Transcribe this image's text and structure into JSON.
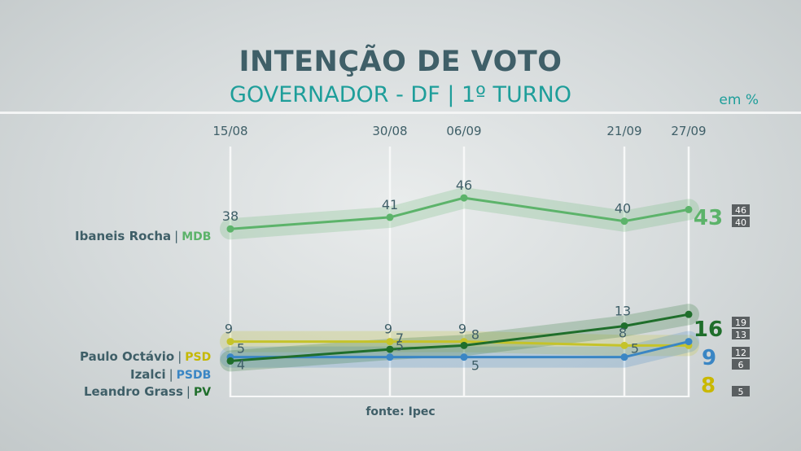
{
  "header": {
    "title": "INTENÇÃO DE VOTO",
    "subtitle": "GOVERNADOR - DF | 1º TURNO",
    "unit": "em %"
  },
  "source": "fonte: Ipec",
  "colors": {
    "ibaneis": "#5cb36a",
    "paulo": "#c5c32a",
    "izalci": "#3a86c4",
    "leandro": "#1f6e2b",
    "text": "#3f5f68"
  },
  "candidates": [
    {
      "name": "Ibaneis Rocha",
      "party": "MDB",
      "sep": "|"
    },
    {
      "name": "Paulo Octávio",
      "party": "PSD",
      "sep": "|"
    },
    {
      "name": "Izalci",
      "party": "PSDB",
      "sep": "|"
    },
    {
      "name": "Leandro Grass",
      "party": "PV",
      "sep": "|"
    }
  ],
  "chart_data": {
    "type": "line",
    "x": [
      "15/08",
      "30/08",
      "06/09",
      "21/09",
      "27/09"
    ],
    "series": [
      {
        "name": "Ibaneis Rocha",
        "values": [
          38,
          41,
          46,
          40,
          43
        ],
        "margin": [
          46,
          40
        ]
      },
      {
        "name": "Paulo Octávio",
        "values": [
          9,
          9,
          9,
          8,
          8
        ],
        "margin": [
          12,
          5
        ]
      },
      {
        "name": "Izalci",
        "values": [
          5,
          5,
          5,
          5,
          9
        ],
        "margin": [
          12,
          6
        ]
      },
      {
        "name": "Leandro Grass",
        "values": [
          4,
          7,
          8,
          13,
          16
        ],
        "margin": [
          19,
          13
        ]
      }
    ],
    "ylim": [
      0,
      50
    ],
    "grid": "vertical"
  }
}
